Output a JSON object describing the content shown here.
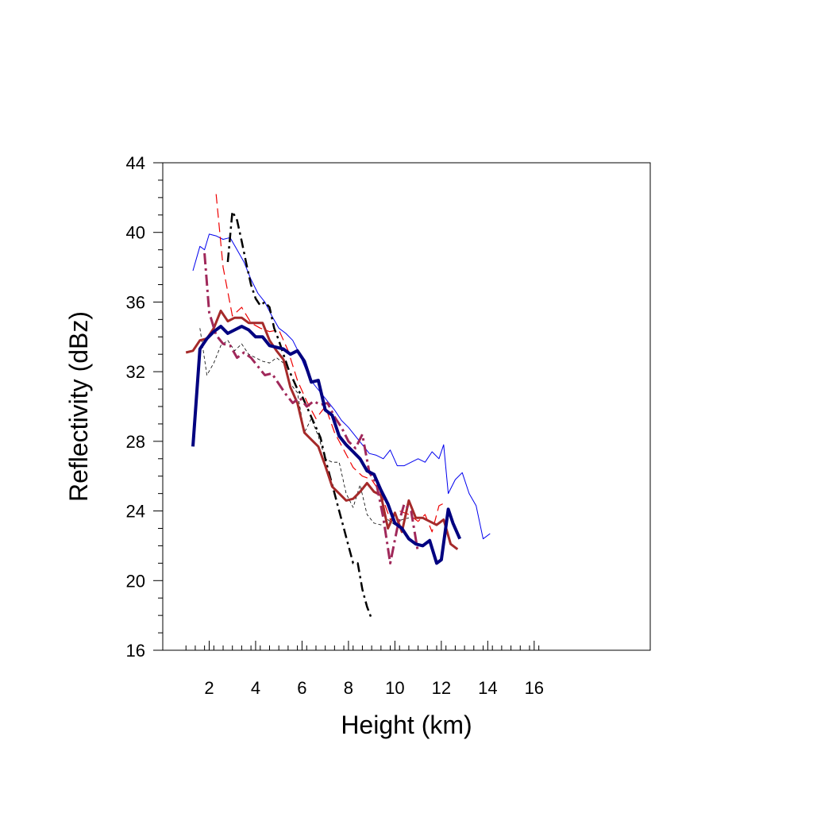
{
  "chart_data": {
    "type": "line",
    "title": "",
    "xlabel": "Height (km)",
    "ylabel": "Reflectivity (dBz)",
    "xlim": [
      0,
      21
    ],
    "ylim": [
      16,
      44
    ],
    "x_ticks": [
      2,
      4,
      6,
      8,
      10,
      12,
      14,
      16
    ],
    "x_tick_labels": [
      "2",
      "4",
      "6",
      "8",
      "10",
      "12",
      "14",
      "16"
    ],
    "y_ticks": [
      16,
      20,
      24,
      28,
      32,
      36,
      40,
      44
    ],
    "y_tick_labels": [
      "16",
      "20",
      "24",
      "28",
      "32",
      "36",
      "40",
      "44"
    ],
    "grid": false,
    "legend": "none",
    "series": [
      {
        "name": "series-thin-blue",
        "color": "#0000ee",
        "width": 1,
        "dash": "",
        "x": [
          1.3,
          1.6,
          1.8,
          2.0,
          2.3,
          2.6,
          2.9,
          3.2,
          3.5,
          3.8,
          4.1,
          4.4,
          4.7,
          5.0,
          5.3,
          5.6,
          5.9,
          6.2,
          6.5,
          6.8,
          7.1,
          7.4,
          7.7,
          8.0,
          8.3,
          8.6,
          8.9,
          9.2,
          9.5,
          9.8,
          10.1,
          10.4,
          10.7,
          11.0,
          11.3,
          11.6,
          11.9,
          12.1,
          12.3,
          12.6,
          12.9,
          13.2,
          13.5,
          13.8,
          14.1
        ],
        "y": [
          37.8,
          39.2,
          39.0,
          39.9,
          39.8,
          39.6,
          39.7,
          39.0,
          38.3,
          37.3,
          36.5,
          36.0,
          35.2,
          34.5,
          34.2,
          33.8,
          33.0,
          32.0,
          31.3,
          30.8,
          30.3,
          29.8,
          29.2,
          28.8,
          28.3,
          27.8,
          27.3,
          27.2,
          27.0,
          27.5,
          26.6,
          26.6,
          26.8,
          27.0,
          26.8,
          27.4,
          27.0,
          27.8,
          25.0,
          25.8,
          26.2,
          25.0,
          24.3,
          22.4,
          22.7
        ]
      },
      {
        "name": "series-thin-black-dash",
        "color": "#000000",
        "width": 0.8,
        "dash": "4,3",
        "x": [
          1.6,
          1.9,
          2.2,
          2.5,
          2.8,
          3.1,
          3.4,
          3.7,
          4.0,
          4.3,
          4.6,
          4.9,
          5.2,
          5.5,
          5.8,
          6.1,
          6.4,
          6.7,
          7.0,
          7.3,
          7.6,
          7.9,
          8.2,
          8.5,
          8.8,
          9.1,
          9.4,
          9.7,
          10.0,
          10.3,
          10.6
        ],
        "y": [
          34.5,
          31.8,
          32.5,
          33.5,
          33.8,
          33.2,
          33.6,
          33.0,
          32.8,
          32.6,
          32.5,
          32.8,
          32.5,
          31.3,
          30.8,
          28.5,
          29.3,
          28.3,
          27.0,
          26.8,
          26.8,
          25.0,
          24.2,
          25.5,
          23.8,
          23.3,
          23.2,
          23.5,
          23.2,
          23.5,
          23.6
        ]
      },
      {
        "name": "series-red-dash",
        "color": "#ee0000",
        "width": 1.2,
        "dash": "12,6",
        "x": [
          2.3,
          2.6,
          3.0,
          3.4,
          3.8,
          4.2,
          4.6,
          5.0,
          5.4,
          5.8,
          6.2,
          6.6,
          7.0,
          7.4,
          7.8,
          8.2,
          8.6,
          9.0,
          9.4,
          9.8,
          10.2,
          10.6,
          11.0,
          11.3,
          11.6,
          11.9,
          12.2
        ],
        "y": [
          42.2,
          38.0,
          35.2,
          35.7,
          34.8,
          34.5,
          34.3,
          34.4,
          33.2,
          31.5,
          30.3,
          29.3,
          30.0,
          28.5,
          27.5,
          26.5,
          26.0,
          25.8,
          25.0,
          23.5,
          24.0,
          23.8,
          23.4,
          23.8,
          22.8,
          24.3,
          24.5
        ]
      },
      {
        "name": "series-black-dashdot",
        "color": "#000000",
        "width": 2.5,
        "dash": "12,5,3,5",
        "x": [
          2.8,
          3.0,
          3.2,
          3.4,
          3.6,
          3.8,
          4.0,
          4.2,
          4.4,
          4.6,
          4.8,
          5.0,
          5.2,
          5.4,
          5.6,
          5.8,
          6.0,
          6.2,
          6.4,
          6.6,
          6.8,
          7.0,
          7.2,
          7.4,
          7.6,
          7.8,
          8.0,
          8.2,
          8.4,
          8.6,
          8.8,
          9.0
        ],
        "y": [
          38.3,
          41.2,
          40.7,
          39.5,
          38.2,
          37.0,
          36.2,
          35.8,
          36.0,
          35.7,
          34.5,
          33.8,
          33.0,
          32.2,
          31.6,
          31.0,
          30.6,
          30.0,
          29.4,
          28.8,
          28.2,
          27.0,
          26.0,
          25.0,
          24.0,
          23.0,
          22.0,
          21.0,
          21.0,
          19.5,
          18.5,
          17.8
        ]
      },
      {
        "name": "series-brown",
        "color": "#a52a2a",
        "width": 3,
        "dash": "",
        "x": [
          1.0,
          1.3,
          1.6,
          1.9,
          2.2,
          2.5,
          2.8,
          3.1,
          3.4,
          3.7,
          4.0,
          4.3,
          4.6,
          4.9,
          5.2,
          5.5,
          5.8,
          6.1,
          6.4,
          6.7,
          7.0,
          7.3,
          7.6,
          7.9,
          8.2,
          8.5,
          8.8,
          9.1,
          9.4,
          9.7,
          10.0,
          10.3,
          10.6,
          10.9,
          11.2,
          11.5,
          11.8,
          12.1,
          12.4,
          12.7
        ],
        "y": [
          33.1,
          33.2,
          33.8,
          33.9,
          34.5,
          35.5,
          34.9,
          35.1,
          35.1,
          34.8,
          34.8,
          34.8,
          33.8,
          33.2,
          32.7,
          31.1,
          30.2,
          28.5,
          28.1,
          27.7,
          26.6,
          25.4,
          25.0,
          24.6,
          24.7,
          25.1,
          25.6,
          25.1,
          24.9,
          23.0,
          23.9,
          22.8,
          24.6,
          23.6,
          23.6,
          23.4,
          23.2,
          23.5,
          22.1,
          21.8
        ]
      },
      {
        "name": "series-purple-dashdot",
        "color": "#a0285a",
        "width": 3,
        "dash": "14,5,3,5",
        "x": [
          1.8,
          2.0,
          2.3,
          2.6,
          2.9,
          3.2,
          3.5,
          3.8,
          4.1,
          4.4,
          4.7,
          5.0,
          5.3,
          5.6,
          5.9,
          6.2,
          6.5,
          6.8,
          7.1,
          7.4,
          7.7,
          8.0,
          8.3,
          8.6,
          8.9,
          9.2,
          9.5,
          9.8,
          10.1,
          10.4,
          10.7,
          11.0
        ],
        "y": [
          38.8,
          35.4,
          34.1,
          33.6,
          33.5,
          32.8,
          33.1,
          32.8,
          32.3,
          31.8,
          31.9,
          31.3,
          30.7,
          30.2,
          30.5,
          30.0,
          30.3,
          30.1,
          30.2,
          29.4,
          28.8,
          28.0,
          27.6,
          28.4,
          26.2,
          25.6,
          23.6,
          21.0,
          23.0,
          24.4,
          24.0,
          21.6
        ]
      },
      {
        "name": "series-navy",
        "color": "#000080",
        "width": 4,
        "dash": "",
        "x": [
          1.3,
          1.6,
          1.9,
          2.2,
          2.5,
          2.8,
          3.1,
          3.4,
          3.7,
          4.0,
          4.3,
          4.6,
          4.9,
          5.2,
          5.5,
          5.8,
          6.1,
          6.4,
          6.7,
          7.0,
          7.3,
          7.6,
          7.9,
          8.2,
          8.5,
          8.8,
          9.1,
          9.4,
          9.7,
          10.0,
          10.3,
          10.6,
          10.9,
          11.2,
          11.5,
          11.8,
          12.0,
          12.3,
          12.5,
          12.8
        ],
        "y": [
          27.7,
          33.3,
          33.9,
          34.3,
          34.6,
          34.2,
          34.4,
          34.6,
          34.4,
          34.0,
          34.0,
          33.5,
          33.4,
          33.3,
          33.0,
          33.2,
          32.6,
          31.4,
          31.5,
          29.8,
          29.5,
          28.3,
          27.8,
          27.4,
          27.0,
          26.3,
          26.1,
          25.2,
          24.4,
          23.3,
          23.0,
          22.4,
          22.1,
          22.0,
          22.3,
          21.0,
          21.2,
          24.1,
          23.3,
          22.4
        ]
      }
    ]
  }
}
